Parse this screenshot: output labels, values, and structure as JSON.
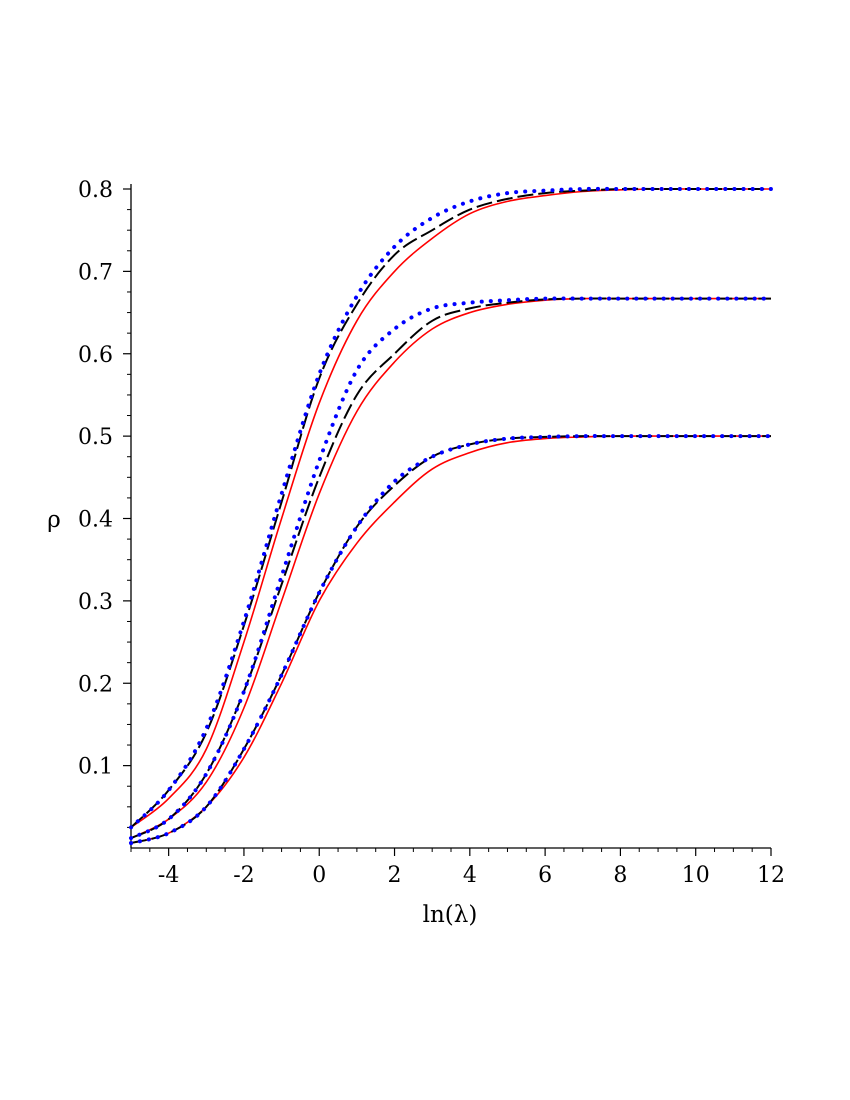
{
  "chart_data": {
    "type": "line",
    "title": "",
    "xlabel": "ln(λ)",
    "ylabel": "ρ",
    "xlim": [
      -5,
      12
    ],
    "ylim": [
      0,
      0.8
    ],
    "grid": false,
    "legend": "none",
    "x_ticks": [
      -4,
      -2,
      0,
      2,
      4,
      6,
      8,
      10,
      12
    ],
    "x_tick_labels": [
      "-4",
      "-2",
      "0",
      "2",
      "4",
      "6",
      "8",
      "10",
      "12"
    ],
    "y_ticks": [
      0.1,
      0.2,
      0.3,
      0.4,
      0.5,
      0.6,
      0.7,
      0.8
    ],
    "y_tick_labels": [
      "0.1",
      "0.2",
      "0.3",
      "0.4",
      "0.5",
      "0.6",
      "0.7",
      "0.8"
    ],
    "x": [
      -5,
      -4,
      -3,
      -2,
      -1,
      0,
      1,
      2,
      3,
      4,
      5,
      6,
      7,
      8,
      9,
      10,
      11,
      12
    ],
    "series": [
      {
        "style": "solid",
        "color": "#ff0000",
        "values": [
          0.025,
          0.06,
          0.12,
          0.25,
          0.4,
          0.54,
          0.64,
          0.7,
          0.74,
          0.77,
          0.785,
          0.792,
          0.797,
          0.799,
          0.8,
          0.8,
          0.8,
          0.8
        ]
      },
      {
        "style": "dashed",
        "color": "#000000",
        "values": [
          0.025,
          0.07,
          0.14,
          0.27,
          0.42,
          0.57,
          0.66,
          0.72,
          0.75,
          0.775,
          0.788,
          0.795,
          0.798,
          0.8,
          0.8,
          0.8,
          0.8,
          0.8
        ]
      },
      {
        "style": "dotted",
        "color": "#0000ff",
        "values": [
          0.025,
          0.07,
          0.145,
          0.275,
          0.43,
          0.575,
          0.67,
          0.73,
          0.765,
          0.785,
          0.795,
          0.798,
          0.8,
          0.8,
          0.8,
          0.8,
          0.8,
          0.8
        ]
      },
      {
        "style": "solid",
        "color": "#ff0000",
        "values": [
          0.012,
          0.035,
          0.08,
          0.17,
          0.3,
          0.43,
          0.53,
          0.59,
          0.63,
          0.65,
          0.66,
          0.665,
          0.667,
          0.667,
          0.667,
          0.667,
          0.667,
          0.667
        ]
      },
      {
        "style": "dashed",
        "color": "#000000",
        "values": [
          0.012,
          0.035,
          0.09,
          0.19,
          0.32,
          0.45,
          0.55,
          0.6,
          0.64,
          0.655,
          0.662,
          0.666,
          0.667,
          0.667,
          0.667,
          0.667,
          0.667,
          0.667
        ]
      },
      {
        "style": "dotted",
        "color": "#0000ff",
        "values": [
          0.012,
          0.035,
          0.09,
          0.19,
          0.33,
          0.47,
          0.58,
          0.63,
          0.655,
          0.662,
          0.665,
          0.667,
          0.667,
          0.667,
          0.667,
          0.667,
          0.667,
          0.667
        ]
      },
      {
        "style": "solid",
        "color": "#ff0000",
        "values": [
          0.006,
          0.018,
          0.05,
          0.11,
          0.2,
          0.3,
          0.37,
          0.42,
          0.46,
          0.48,
          0.492,
          0.497,
          0.499,
          0.5,
          0.5,
          0.5,
          0.5,
          0.5
        ]
      },
      {
        "style": "dashed",
        "color": "#000000",
        "values": [
          0.006,
          0.018,
          0.05,
          0.12,
          0.21,
          0.31,
          0.39,
          0.44,
          0.475,
          0.49,
          0.497,
          0.499,
          0.5,
          0.5,
          0.5,
          0.5,
          0.5,
          0.5
        ]
      },
      {
        "style": "dotted",
        "color": "#0000ff",
        "values": [
          0.006,
          0.018,
          0.05,
          0.12,
          0.21,
          0.31,
          0.39,
          0.445,
          0.475,
          0.49,
          0.497,
          0.499,
          0.5,
          0.5,
          0.5,
          0.5,
          0.5,
          0.5
        ]
      }
    ]
  }
}
